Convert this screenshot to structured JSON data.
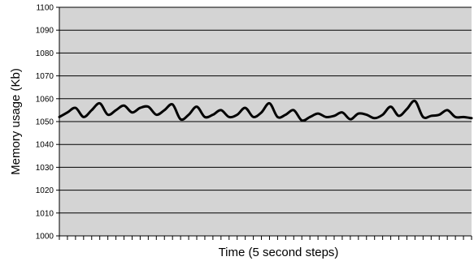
{
  "chart_data": {
    "type": "line",
    "title": "",
    "xlabel": "Time (5 second steps)",
    "ylabel": "Memory usage (Kb)",
    "ylim": [
      1000,
      1100
    ],
    "yticks": [
      1000,
      1010,
      1020,
      1030,
      1040,
      1050,
      1060,
      1070,
      1080,
      1090,
      1100
    ],
    "xlim": [
      0,
      102
    ],
    "grid": true,
    "legend": "none",
    "colors": {
      "plot_background": "#d4d4d4",
      "line": "#000000",
      "gridline": "#000000"
    },
    "series": [
      {
        "x": [
          0,
          2,
          4,
          6,
          8,
          10,
          12,
          14,
          16,
          18,
          20,
          22,
          24,
          26,
          28,
          30,
          32,
          34,
          36,
          38,
          40,
          42,
          44,
          46,
          48,
          50,
          52,
          54,
          56,
          58,
          60,
          62,
          64,
          66,
          68,
          70,
          72,
          74,
          76,
          78,
          80,
          82,
          84,
          86,
          88,
          90,
          92,
          94,
          96,
          98,
          100,
          102
        ],
        "y": [
          1052,
          1054,
          1056,
          1052,
          1055,
          1058,
          1053,
          1055,
          1057,
          1054,
          1056,
          1056.5,
          1053,
          1055,
          1057.5,
          1051,
          1053,
          1056.5,
          1052,
          1053,
          1055,
          1052,
          1053,
          1056,
          1052,
          1054,
          1058,
          1052,
          1053,
          1055,
          1050.5,
          1052,
          1053.5,
          1052,
          1052.5,
          1054,
          1051,
          1053.5,
          1053,
          1051.5,
          1053,
          1056.5,
          1052.5,
          1055.5,
          1059,
          1052,
          1052.5,
          1053,
          1055,
          1052,
          1052,
          1051.5
        ]
      }
    ]
  }
}
